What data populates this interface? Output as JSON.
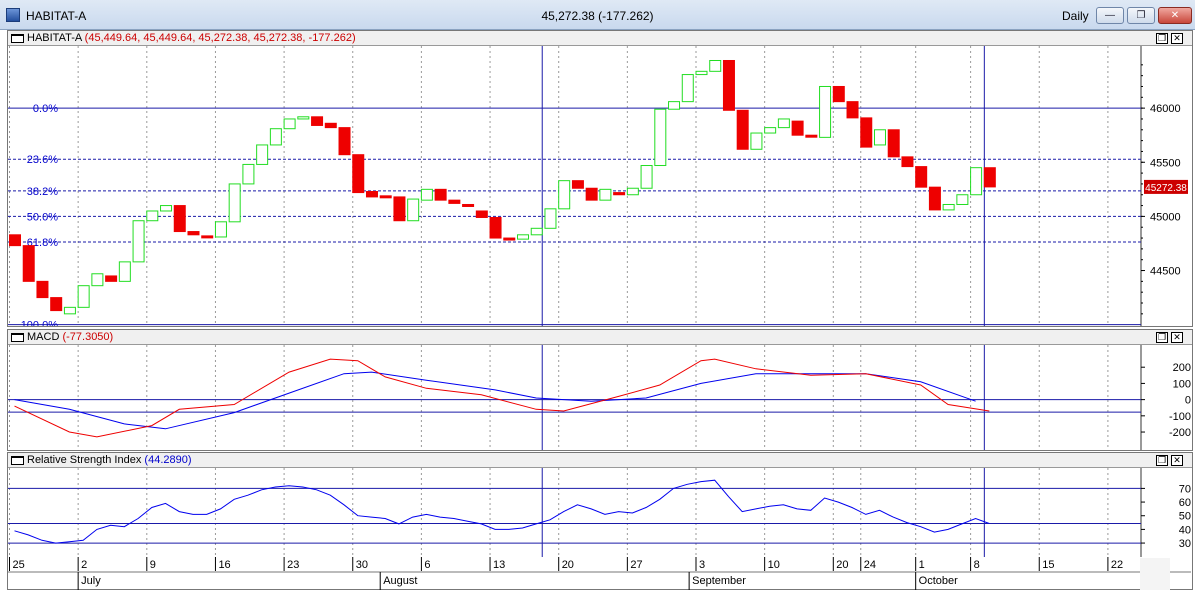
{
  "window": {
    "symbol": "HABITAT-A",
    "quote": "45,272.38 (-177.262)",
    "period": "Daily",
    "minimize_glyph": "—",
    "restore_glyph": "❐",
    "close_glyph": "✕"
  },
  "panel_buttons": {
    "restore_glyph": "❐",
    "close_glyph": "✕"
  },
  "price_panel": {
    "name": "HABITAT-A",
    "values": "(45,449.64, 45,449.64, 45,272.38, 45,272.38, -177.262)",
    "last_price_tag": "45272.38"
  },
  "macd_panel": {
    "name": "MACD",
    "value": "(-77.3050)"
  },
  "rsi_panel": {
    "name": "Relative Strength Index",
    "value": "(44.2890)"
  },
  "x_axis": {
    "day_ticks": [
      {
        "i": 0,
        "label": "25"
      },
      {
        "i": 5,
        "label": "2"
      },
      {
        "i": 10,
        "label": "9"
      },
      {
        "i": 15,
        "label": "16"
      },
      {
        "i": 20,
        "label": "23"
      },
      {
        "i": 25,
        "label": "30"
      },
      {
        "i": 30,
        "label": "6"
      },
      {
        "i": 35,
        "label": "13"
      },
      {
        "i": 40,
        "label": "20"
      },
      {
        "i": 45,
        "label": "27"
      },
      {
        "i": 50,
        "label": "3"
      },
      {
        "i": 55,
        "label": "10"
      },
      {
        "i": 60,
        "label": "20"
      },
      {
        "i": 62,
        "label": "24"
      },
      {
        "i": 66,
        "label": "1"
      },
      {
        "i": 70,
        "label": "8"
      },
      {
        "i": 75,
        "label": "15"
      },
      {
        "i": 80,
        "label": "22"
      }
    ],
    "months": [
      {
        "i": 5,
        "label": "July"
      },
      {
        "i": 27,
        "label": "August"
      },
      {
        "i": 49.5,
        "label": "September"
      },
      {
        "i": 66,
        "label": "October"
      }
    ]
  },
  "colors": {
    "up": "#22dd22",
    "down": "#ee0000",
    "grid": "#1a1aa8",
    "macd": "#0000ee",
    "signal": "#ee0000",
    "rsi": "#0000ee",
    "tag_bg": "#cc0000",
    "axis_text": "#000000"
  },
  "chart_data": [
    {
      "type": "candlestick",
      "title": "HABITAT-A",
      "x_positions": "bar index 0..70 (trading days from 25 Jun to 8 Oct)",
      "ylim": [
        44080,
        46500
      ],
      "y_ticks": [
        44500,
        45000,
        45500,
        46000
      ],
      "fibonacci_levels": [
        {
          "label": "0.0%",
          "value": 46000
        },
        {
          "label": "23.6%",
          "value": 45528
        },
        {
          "label": "38.2%",
          "value": 45236
        },
        {
          "label": "50.0%",
          "value": 45000
        },
        {
          "label": "61.8%",
          "value": 44764
        },
        {
          "label": "100.0%",
          "value": 44000
        }
      ],
      "bars": [
        {
          "i": 0,
          "o": 44830,
          "c": 44730
        },
        {
          "i": 1,
          "o": 44730,
          "c": 44400
        },
        {
          "i": 2,
          "o": 44400,
          "c": 44250
        },
        {
          "i": 3,
          "o": 44250,
          "c": 44130
        },
        {
          "i": 4,
          "o": 44100,
          "c": 44160
        },
        {
          "i": 5,
          "o": 44160,
          "c": 44360
        },
        {
          "i": 6,
          "o": 44360,
          "c": 44470
        },
        {
          "i": 7,
          "o": 44450,
          "c": 44400
        },
        {
          "i": 8,
          "o": 44400,
          "c": 44580
        },
        {
          "i": 9,
          "o": 44580,
          "c": 44960
        },
        {
          "i": 10,
          "o": 44960,
          "c": 45050
        },
        {
          "i": 11,
          "o": 45050,
          "c": 45100
        },
        {
          "i": 12,
          "o": 45100,
          "c": 44860
        },
        {
          "i": 13,
          "o": 44860,
          "c": 44830
        },
        {
          "i": 14,
          "o": 44820,
          "c": 44810
        },
        {
          "i": 15,
          "o": 44810,
          "c": 44950
        },
        {
          "i": 16,
          "o": 44950,
          "c": 45300
        },
        {
          "i": 17,
          "o": 45300,
          "c": 45480
        },
        {
          "i": 18,
          "o": 45480,
          "c": 45660
        },
        {
          "i": 19,
          "o": 45660,
          "c": 45810
        },
        {
          "i": 20,
          "o": 45810,
          "c": 45900
        },
        {
          "i": 21,
          "o": 45900,
          "c": 45920
        },
        {
          "i": 22,
          "o": 45920,
          "c": 45840
        },
        {
          "i": 23,
          "o": 45860,
          "c": 45820
        },
        {
          "i": 24,
          "o": 45820,
          "c": 45570
        },
        {
          "i": 25,
          "o": 45570,
          "c": 45220
        },
        {
          "i": 26,
          "o": 45230,
          "c": 45180
        },
        {
          "i": 27,
          "o": 45190,
          "c": 45180
        },
        {
          "i": 28,
          "o": 45180,
          "c": 44960
        },
        {
          "i": 29,
          "o": 44960,
          "c": 45160
        },
        {
          "i": 30,
          "o": 45150,
          "c": 45250
        },
        {
          "i": 31,
          "o": 45250,
          "c": 45150
        },
        {
          "i": 32,
          "o": 45150,
          "c": 45120
        },
        {
          "i": 33,
          "o": 45110,
          "c": 45100
        },
        {
          "i": 34,
          "o": 45050,
          "c": 44990
        },
        {
          "i": 35,
          "o": 44990,
          "c": 44800
        },
        {
          "i": 36,
          "o": 44800,
          "c": 44790
        },
        {
          "i": 37,
          "o": 44790,
          "c": 44830
        },
        {
          "i": 38,
          "o": 44830,
          "c": 44890
        },
        {
          "i": 39,
          "o": 44890,
          "c": 45070
        },
        {
          "i": 40,
          "o": 45070,
          "c": 45330
        },
        {
          "i": 41,
          "o": 45330,
          "c": 45260
        },
        {
          "i": 42,
          "o": 45260,
          "c": 45150
        },
        {
          "i": 43,
          "o": 45150,
          "c": 45250
        },
        {
          "i": 44,
          "o": 45220,
          "c": 45200
        },
        {
          "i": 45,
          "o": 45200,
          "c": 45260
        },
        {
          "i": 46,
          "o": 45260,
          "c": 45470
        },
        {
          "i": 47,
          "o": 45470,
          "c": 45990
        },
        {
          "i": 48,
          "o": 45990,
          "c": 46060
        },
        {
          "i": 49,
          "o": 46060,
          "c": 46310
        },
        {
          "i": 50,
          "o": 46310,
          "c": 46340
        },
        {
          "i": 51,
          "o": 46340,
          "c": 46440
        },
        {
          "i": 52,
          "o": 46440,
          "c": 45980
        },
        {
          "i": 53,
          "o": 45980,
          "c": 45620
        },
        {
          "i": 54,
          "o": 45620,
          "c": 45770
        },
        {
          "i": 55,
          "o": 45770,
          "c": 45820
        },
        {
          "i": 56,
          "o": 45820,
          "c": 45900
        },
        {
          "i": 57,
          "o": 45880,
          "c": 45750
        },
        {
          "i": 58,
          "o": 45750,
          "c": 45740
        },
        {
          "i": 59,
          "o": 45730,
          "c": 46200
        },
        {
          "i": 60,
          "o": 46200,
          "c": 46060
        },
        {
          "i": 61,
          "o": 46060,
          "c": 45910
        },
        {
          "i": 62,
          "o": 45910,
          "c": 45640
        },
        {
          "i": 63,
          "o": 45660,
          "c": 45800
        },
        {
          "i": 64,
          "o": 45800,
          "c": 45550
        },
        {
          "i": 65,
          "o": 45550,
          "c": 45460
        },
        {
          "i": 66,
          "o": 45460,
          "c": 45270
        },
        {
          "i": 67,
          "o": 45270,
          "c": 45060
        },
        {
          "i": 68,
          "o": 45060,
          "c": 45110
        },
        {
          "i": 69,
          "o": 45110,
          "c": 45200
        },
        {
          "i": 70,
          "o": 45200,
          "c": 45450
        },
        {
          "i": 71,
          "o": 45449.64,
          "c": 45272.38
        }
      ]
    },
    {
      "type": "line",
      "title": "MACD",
      "ylim": [
        -280,
        300
      ],
      "y_ticks": [
        200,
        100,
        0,
        -100,
        -200
      ],
      "reference_lines": [
        0,
        -77
      ],
      "series": [
        {
          "name": "MACD",
          "color": "#0000ee",
          "points": [
            [
              0,
              0
            ],
            [
              4,
              -60
            ],
            [
              8,
              -150
            ],
            [
              11,
              -180
            ],
            [
              16,
              -80
            ],
            [
              20,
              40
            ],
            [
              24,
              160
            ],
            [
              26,
              170
            ],
            [
              30,
              120
            ],
            [
              35,
              60
            ],
            [
              38,
              10
            ],
            [
              42,
              -10
            ],
            [
              46,
              10
            ],
            [
              50,
              100
            ],
            [
              54,
              160
            ],
            [
              58,
              160
            ],
            [
              62,
              160
            ],
            [
              66,
              110
            ],
            [
              70,
              -10
            ]
          ]
        },
        {
          "name": "Signal",
          "color": "#ee0000",
          "points": [
            [
              0,
              -40
            ],
            [
              4,
              -200
            ],
            [
              6,
              -230
            ],
            [
              10,
              -160
            ],
            [
              12,
              -60
            ],
            [
              16,
              -30
            ],
            [
              20,
              170
            ],
            [
              23,
              250
            ],
            [
              25,
              240
            ],
            [
              27,
              140
            ],
            [
              30,
              70
            ],
            [
              34,
              30
            ],
            [
              38,
              -60
            ],
            [
              40,
              -70
            ],
            [
              44,
              20
            ],
            [
              47,
              90
            ],
            [
              50,
              240
            ],
            [
              51,
              250
            ],
            [
              54,
              190
            ],
            [
              58,
              150
            ],
            [
              62,
              160
            ],
            [
              66,
              90
            ],
            [
              68,
              -30
            ],
            [
              71,
              -70
            ]
          ]
        }
      ]
    },
    {
      "type": "line",
      "title": "Relative Strength Index",
      "ylim": [
        22,
        82
      ],
      "y_ticks": [
        70,
        60,
        50,
        40,
        30
      ],
      "reference_lines": [
        70,
        44.3,
        30
      ],
      "series": [
        {
          "name": "RSI",
          "color": "#0000ee",
          "points": [
            [
              0,
              39
            ],
            [
              1,
              36
            ],
            [
              2,
              32
            ],
            [
              3,
              30
            ],
            [
              4,
              31
            ],
            [
              5,
              32
            ],
            [
              6,
              40
            ],
            [
              7,
              43
            ],
            [
              8,
              42
            ],
            [
              9,
              48
            ],
            [
              10,
              56
            ],
            [
              11,
              59
            ],
            [
              12,
              53
            ],
            [
              13,
              51
            ],
            [
              14,
              51
            ],
            [
              15,
              55
            ],
            [
              16,
              62
            ],
            [
              17,
              65
            ],
            [
              18,
              69
            ],
            [
              19,
              71
            ],
            [
              20,
              72
            ],
            [
              21,
              71
            ],
            [
              22,
              69
            ],
            [
              23,
              65
            ],
            [
              24,
              58
            ],
            [
              25,
              50
            ],
            [
              26,
              49
            ],
            [
              27,
              48
            ],
            [
              28,
              44
            ],
            [
              29,
              49
            ],
            [
              30,
              51
            ],
            [
              31,
              49
            ],
            [
              32,
              48
            ],
            [
              33,
              46
            ],
            [
              34,
              44
            ],
            [
              35,
              40
            ],
            [
              36,
              40
            ],
            [
              37,
              41
            ],
            [
              38,
              44
            ],
            [
              39,
              47
            ],
            [
              40,
              53
            ],
            [
              41,
              58
            ],
            [
              42,
              55
            ],
            [
              43,
              51
            ],
            [
              44,
              53
            ],
            [
              45,
              52
            ],
            [
              46,
              56
            ],
            [
              47,
              62
            ],
            [
              48,
              70
            ],
            [
              49,
              73
            ],
            [
              50,
              75
            ],
            [
              51,
              76
            ],
            [
              52,
              64
            ],
            [
              53,
              53
            ],
            [
              54,
              55
            ],
            [
              55,
              57
            ],
            [
              56,
              58
            ],
            [
              57,
              55
            ],
            [
              58,
              54
            ],
            [
              59,
              63
            ],
            [
              60,
              60
            ],
            [
              61,
              56
            ],
            [
              62,
              51
            ],
            [
              63,
              54
            ],
            [
              64,
              49
            ],
            [
              65,
              45
            ],
            [
              66,
              42
            ],
            [
              67,
              38
            ],
            [
              68,
              40
            ],
            [
              69,
              44
            ],
            [
              70,
              48
            ],
            [
              71,
              44.3
            ]
          ]
        }
      ]
    }
  ]
}
